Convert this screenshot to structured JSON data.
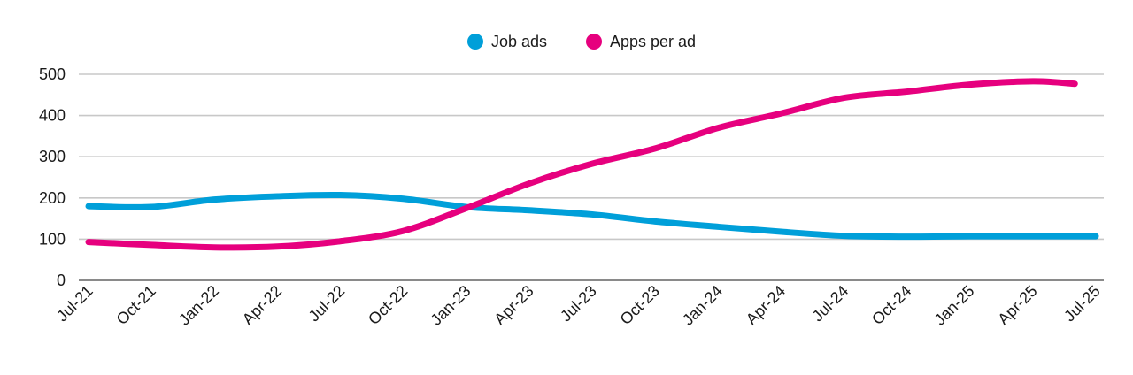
{
  "chart_data": {
    "type": "line",
    "title": "",
    "xlabel": "",
    "ylabel": "",
    "ylim": [
      0,
      500
    ],
    "yticks": [
      0,
      100,
      200,
      300,
      400,
      500
    ],
    "grid": true,
    "legend_position": "top-center",
    "x_tick_labels": [
      "Jul-21",
      "Oct-21",
      "Jan-22",
      "Apr-22",
      "Jul-22",
      "Oct-22",
      "Jan-23",
      "Apr-23",
      "Jul-23",
      "Oct-23",
      "Jan-24",
      "Apr-24",
      "Jul-24",
      "Oct-24",
      "Jan-25",
      "Apr-25",
      "Jul-25"
    ],
    "series": [
      {
        "name": "Job ads",
        "color": "#009fd9",
        "x": [
          "Jul-21",
          "Oct-21",
          "Jan-22",
          "Apr-22",
          "Jul-22",
          "Oct-22",
          "Jan-23",
          "Apr-23",
          "Jul-23",
          "Oct-23",
          "Jan-24",
          "Apr-24",
          "Jul-24",
          "Oct-24",
          "Jan-25",
          "Apr-25",
          "Jul-25"
        ],
        "values": [
          180,
          178,
          196,
          204,
          207,
          198,
          178,
          170,
          160,
          143,
          130,
          118,
          108,
          106,
          107,
          107,
          107
        ]
      },
      {
        "name": "Apps per ad",
        "color": "#e6007e",
        "x": [
          "Jul-21",
          "Oct-21",
          "Jan-22",
          "Apr-22",
          "Jul-22",
          "Oct-22",
          "Jan-23",
          "Apr-23",
          "Jul-23",
          "Oct-23",
          "Jan-24",
          "Apr-24",
          "Jul-24",
          "Oct-24",
          "Jan-25",
          "Apr-25",
          "Jun-25"
        ],
        "values": [
          93,
          86,
          80,
          82,
          95,
          120,
          175,
          235,
          283,
          320,
          370,
          405,
          443,
          458,
          475,
          483,
          477
        ]
      }
    ]
  }
}
